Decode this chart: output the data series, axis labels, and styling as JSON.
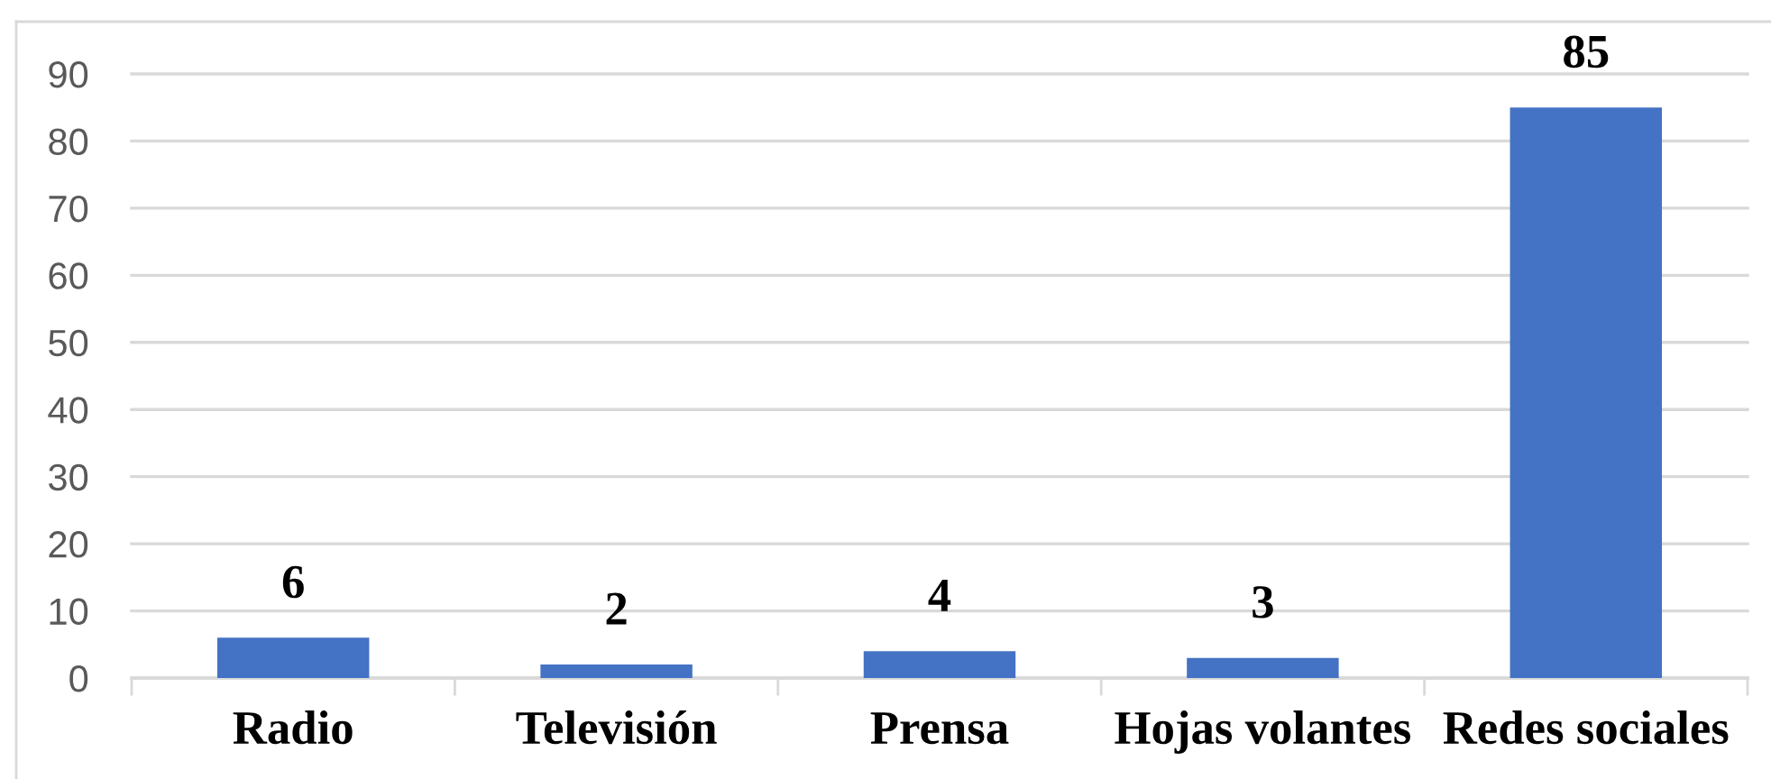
{
  "chart_data": {
    "type": "bar",
    "categories": [
      "Radio",
      "Televisión",
      "Prensa",
      "Hojas volantes",
      "Redes sociales"
    ],
    "values": [
      6,
      2,
      4,
      3,
      85
    ],
    "color": "#4472c4",
    "data_labels": true,
    "ylim": [
      0,
      90
    ],
    "yticks": [
      0,
      10,
      20,
      30,
      40,
      50,
      60,
      70,
      80,
      90
    ],
    "grid": "y"
  }
}
